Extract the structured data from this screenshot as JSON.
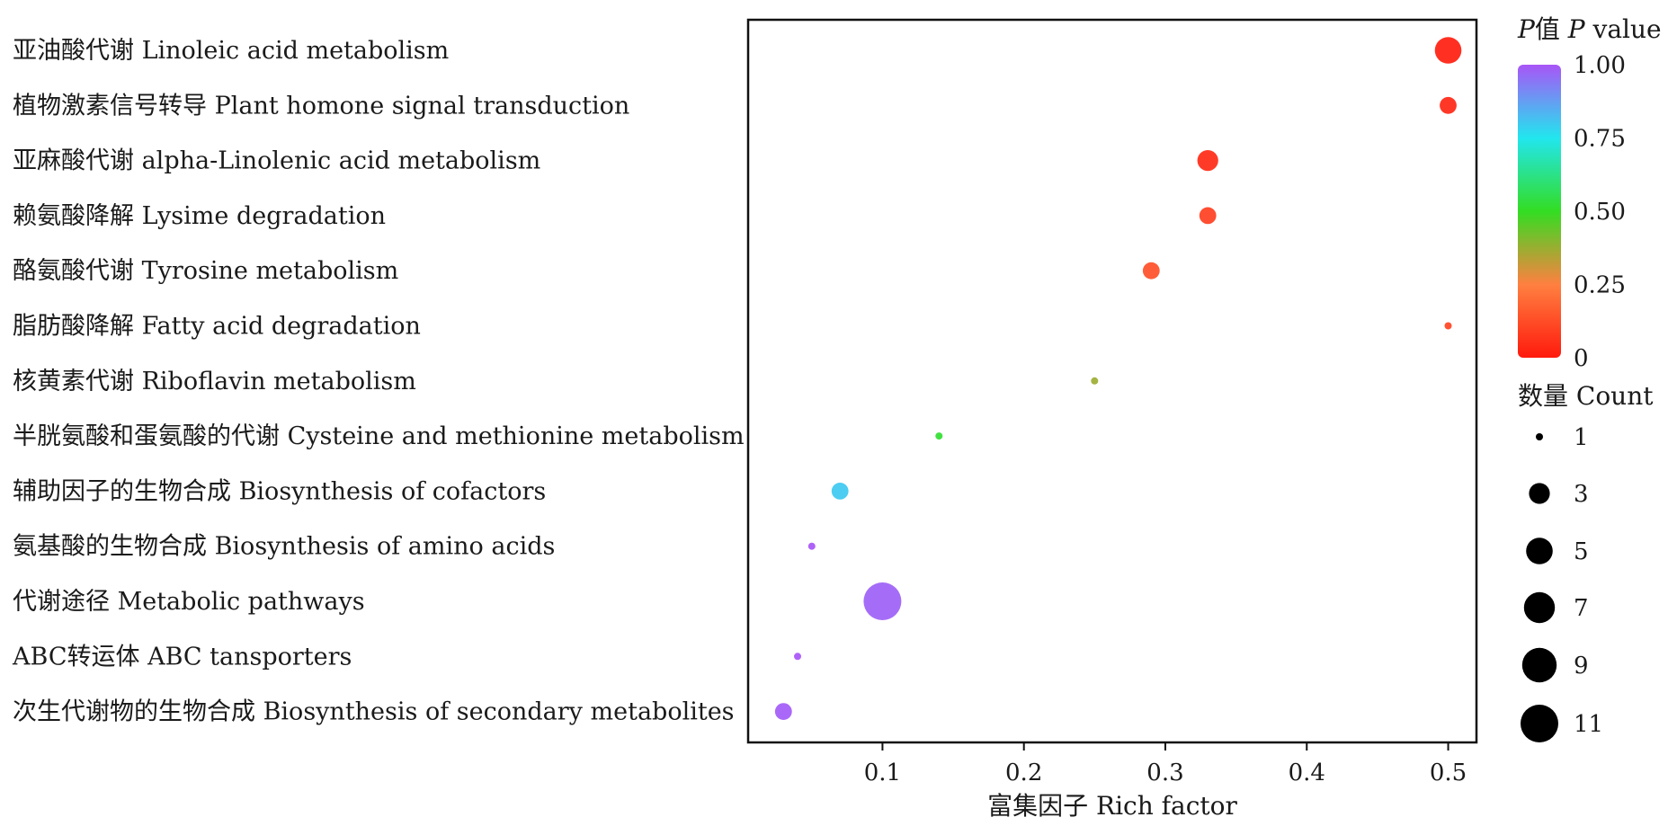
{
  "chart_data": {
    "type": "scatter",
    "xlabel": "富集因子 Rich factor",
    "x_ticks": [
      0.1,
      0.2,
      0.3,
      0.4,
      0.5
    ],
    "x_tick_labels": [
      "0.1",
      "0.2",
      "0.3",
      "0.4",
      "0.5"
    ],
    "xlim": [
      0.005,
      0.52
    ],
    "categories": [
      "亚油酸代谢 Linoleic acid metabolism",
      "植物激素信号转导 Plant homone signal transduction",
      "亚麻酸代谢 alpha-Linolenic acid metabolism",
      "赖氨酸降解 Lysime degradation",
      "酪氨酸代谢 Tyrosine metabolism",
      "脂肪酸降解 Fatty acid degradation",
      "核黄素代谢 Riboflavin metabolism",
      "半胱氨酸和蛋氨酸的代谢 Cysteine and methionine metabolism",
      "辅助因子的生物合成 Biosynthesis of cofactors",
      "氨基酸的生物合成 Biosynthesis of amino acids",
      "代谢途径 Metabolic pathways",
      "ABC转运体 ABC tansporters",
      "次生代谢物的生物合成 Biosynthesis of secondary metabolites"
    ],
    "points": [
      {
        "category": "亚油酸代谢 Linoleic acid metabolism",
        "rich_factor": 0.5,
        "p_value": 0.01,
        "count": 5
      },
      {
        "category": "植物激素信号转导 Plant homone signal transduction",
        "rich_factor": 0.5,
        "p_value": 0.03,
        "count": 2
      },
      {
        "category": "亚麻酸代谢 alpha-Linolenic acid metabolism",
        "rich_factor": 0.33,
        "p_value": 0.04,
        "count": 3
      },
      {
        "category": "赖氨酸降解 Lysime degradation",
        "rich_factor": 0.33,
        "p_value": 0.09,
        "count": 2
      },
      {
        "category": "酪氨酸代谢 Tyrosine metabolism",
        "rich_factor": 0.29,
        "p_value": 0.13,
        "count": 2
      },
      {
        "category": "脂肪酸降解 Fatty acid degradation",
        "rich_factor": 0.5,
        "p_value": 0.1,
        "count": 1
      },
      {
        "category": "核黄素代谢 Riboflavin metabolism",
        "rich_factor": 0.25,
        "p_value": 0.37,
        "count": 1
      },
      {
        "category": "半胱氨酸和蛋氨酸的代谢 Cysteine and methionine metabolism",
        "rich_factor": 0.14,
        "p_value": 0.52,
        "count": 1
      },
      {
        "category": "辅助因子的生物合成 Biosynthesis of cofactors",
        "rich_factor": 0.07,
        "p_value": 0.8,
        "count": 2
      },
      {
        "category": "氨基酸的生物合成 Biosynthesis of amino acids",
        "rich_factor": 0.05,
        "p_value": 1.0,
        "count": 1
      },
      {
        "category": "代谢途径 Metabolic pathways",
        "rich_factor": 0.1,
        "p_value": 0.98,
        "count": 11
      },
      {
        "category": "ABC转运体 ABC tansporters",
        "rich_factor": 0.04,
        "p_value": 1.0,
        "count": 1
      },
      {
        "category": "次生代谢物的生物合成 Biosynthesis of secondary metabolites",
        "rich_factor": 0.03,
        "p_value": 0.99,
        "count": 2
      }
    ],
    "color_legend": {
      "title_italic": "P",
      "title_cn": "值",
      "title_italic2": "P",
      "title_en": " value",
      "ticks": [
        1.0,
        0.75,
        0.5,
        0.25,
        0
      ],
      "tick_labels": [
        "1.00",
        "0.75",
        "0.50",
        "0.25",
        "0"
      ],
      "gradient": [
        {
          "value": 0,
          "color": "#ff1a0d"
        },
        {
          "value": 0.25,
          "color": "#ff8040"
        },
        {
          "value": 0.5,
          "color": "#33dd22"
        },
        {
          "value": 0.75,
          "color": "#22e6ee"
        },
        {
          "value": 1.0,
          "color": "#a855f7"
        }
      ]
    },
    "size_legend": {
      "title": "数量 Count",
      "values": [
        1,
        3,
        5,
        7,
        9,
        11
      ],
      "labels": [
        "1",
        "3",
        "5",
        "7",
        "9",
        "11"
      ]
    },
    "grid": false,
    "legend_placement": "right"
  }
}
